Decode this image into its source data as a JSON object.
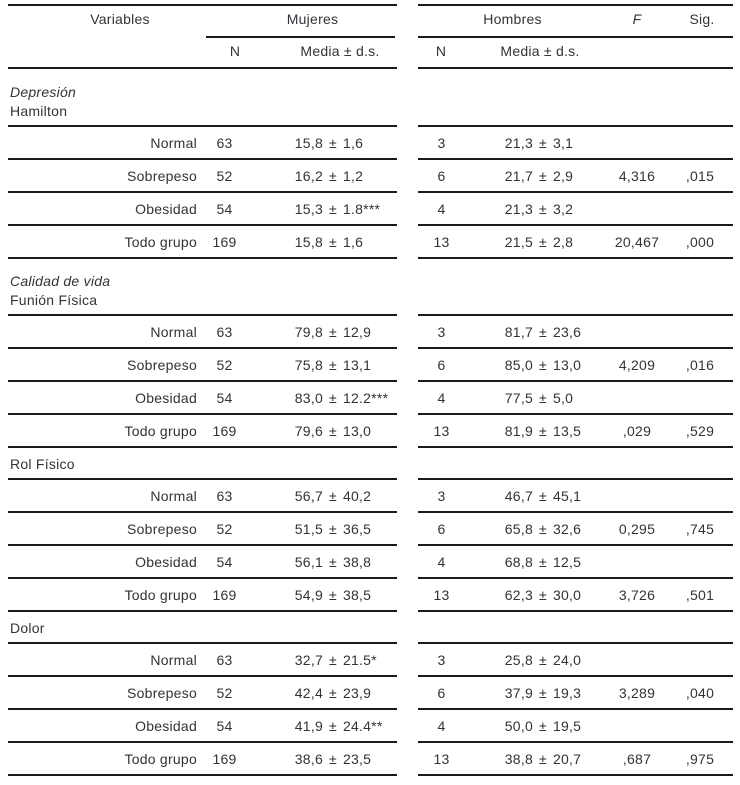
{
  "table": {
    "plus_minus": "±",
    "header": {
      "variables": "Variables",
      "mujeres": "Mujeres",
      "hombres": "Hombres",
      "f": "F",
      "sig": "Sig.",
      "n": "N",
      "media": "Media ± d.s."
    },
    "sections": [
      {
        "title_italic": "Depresión",
        "title": "Hamilton",
        "rows": [
          {
            "label": "Normal",
            "n_mujeres": "63",
            "mean_mujeres": "15,8",
            "sd_mujeres": "1,6",
            "n_hombres": "3",
            "mean_hombres": "21,3",
            "sd_hombres": "3,1",
            "f": "",
            "sig": ""
          },
          {
            "label": "Sobrepeso",
            "n_mujeres": "52",
            "mean_mujeres": "16,2",
            "sd_mujeres": "1,2",
            "n_hombres": "6",
            "mean_hombres": "21,7",
            "sd_hombres": "2,9",
            "f": "4,316",
            "sig": ",015"
          },
          {
            "label": "Obesidad",
            "n_mujeres": "54",
            "mean_mujeres": "15,3",
            "sd_mujeres": "1.8***",
            "n_hombres": "4",
            "mean_hombres": "21,3",
            "sd_hombres": "3,2",
            "f": "",
            "sig": ""
          },
          {
            "label": "Todo grupo",
            "n_mujeres": "169",
            "mean_mujeres": "15,8",
            "sd_mujeres": "1,6",
            "n_hombres": "13",
            "mean_hombres": "21,5",
            "sd_hombres": "2,8",
            "f": "20,467",
            "sig": ",000"
          }
        ]
      },
      {
        "title_italic": "Calidad de vida",
        "title": "Funión Física",
        "rows": [
          {
            "label": "Normal",
            "n_mujeres": "63",
            "mean_mujeres": "79,8",
            "sd_mujeres": "12,9",
            "n_hombres": "3",
            "mean_hombres": "81,7",
            "sd_hombres": "23,6",
            "f": "",
            "sig": ""
          },
          {
            "label": "Sobrepeso",
            "n_mujeres": "52",
            "mean_mujeres": "75,8",
            "sd_mujeres": "13,1",
            "n_hombres": "6",
            "mean_hombres": "85,0",
            "sd_hombres": "13,0",
            "f": "4,209",
            "sig": ",016"
          },
          {
            "label": "Obesidad",
            "n_mujeres": "54",
            "mean_mujeres": "83,0",
            "sd_mujeres": "12.2***",
            "n_hombres": "4",
            "mean_hombres": "77,5",
            "sd_hombres": "5,0",
            "f": "",
            "sig": ""
          },
          {
            "label": "Todo grupo",
            "n_mujeres": "169",
            "mean_mujeres": "79,6",
            "sd_mujeres": "13,0",
            "n_hombres": "13",
            "mean_hombres": "81,9",
            "sd_hombres": "13,5",
            "f": ",029",
            "sig": ",529"
          }
        ]
      },
      {
        "title": "Rol Físico",
        "rows": [
          {
            "label": "Normal",
            "n_mujeres": "63",
            "mean_mujeres": "56,7",
            "sd_mujeres": "40,2",
            "n_hombres": "3",
            "mean_hombres": "46,7",
            "sd_hombres": "45,1",
            "f": "",
            "sig": ""
          },
          {
            "label": "Sobrepeso",
            "n_mujeres": "52",
            "mean_mujeres": "51,5",
            "sd_mujeres": "36,5",
            "n_hombres": "6",
            "mean_hombres": "65,8",
            "sd_hombres": "32,6",
            "f": "0,295",
            "sig": ",745"
          },
          {
            "label": "Obesidad",
            "n_mujeres": "54",
            "mean_mujeres": "56,1",
            "sd_mujeres": "38,8",
            "n_hombres": "4",
            "mean_hombres": "68,8",
            "sd_hombres": "12,5",
            "f": "",
            "sig": ""
          },
          {
            "label": "Todo grupo",
            "n_mujeres": "169",
            "mean_mujeres": "54,9",
            "sd_mujeres": "38,5",
            "n_hombres": "13",
            "mean_hombres": "62,3",
            "sd_hombres": "30,0",
            "f": "3,726",
            "sig": ",501"
          }
        ]
      },
      {
        "title": "Dolor",
        "rows": [
          {
            "label": "Normal",
            "n_mujeres": "63",
            "mean_mujeres": "32,7",
            "sd_mujeres": "21.5*",
            "n_hombres": "3",
            "mean_hombres": "25,8",
            "sd_hombres": "24,0",
            "f": "",
            "sig": ""
          },
          {
            "label": "Sobrepeso",
            "n_mujeres": "52",
            "mean_mujeres": "42,4",
            "sd_mujeres": "23,9",
            "n_hombres": "6",
            "mean_hombres": "37,9",
            "sd_hombres": "19,3",
            "f": "3,289",
            "sig": ",040"
          },
          {
            "label": "Obesidad",
            "n_mujeres": "54",
            "mean_mujeres": "41,9",
            "sd_mujeres": "24.4**",
            "n_hombres": "4",
            "mean_hombres": "50,0",
            "sd_hombres": "19,5",
            "f": "",
            "sig": ""
          },
          {
            "label": "Todo grupo",
            "n_mujeres": "169",
            "mean_mujeres": "38,6",
            "sd_mujeres": "23,5",
            "n_hombres": "13",
            "mean_hombres": "38,8",
            "sd_hombres": "20,7",
            "f": ",687",
            "sig": ",975"
          }
        ]
      }
    ]
  },
  "colors": {
    "background": "#ffffff",
    "text": "#343238",
    "rule": "#1b1b1b"
  }
}
